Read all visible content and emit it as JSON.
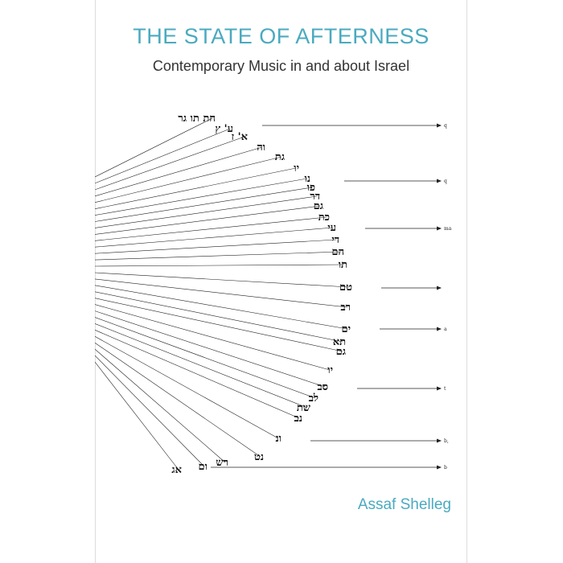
{
  "book": {
    "title": "THE STATE OF AFTERNESS",
    "subtitle": "Contemporary Music in and about Israel",
    "author": "Assaf Shelleg"
  },
  "colors": {
    "title": "#4aaabf",
    "subtitle": "#333333",
    "author": "#4aaabf",
    "lines": "#222222"
  },
  "diagram": {
    "labels": [
      "חת תו גר",
      "ע' ץ",
      "א' ז",
      "וה",
      "גת",
      "יו",
      "נו",
      "פו",
      "דר",
      "גם",
      "כת",
      "עי",
      "די",
      "הם",
      "תו",
      "טם",
      "רב",
      "ים",
      "תא",
      "גם",
      "יו",
      "סב",
      "לב",
      "שת",
      "נב",
      "ונ",
      "נט",
      "רש",
      "ום",
      "אג"
    ],
    "arrow_labels": [
      "q",
      "q",
      "ma",
      "",
      "a",
      "t",
      "b,",
      "b"
    ]
  }
}
